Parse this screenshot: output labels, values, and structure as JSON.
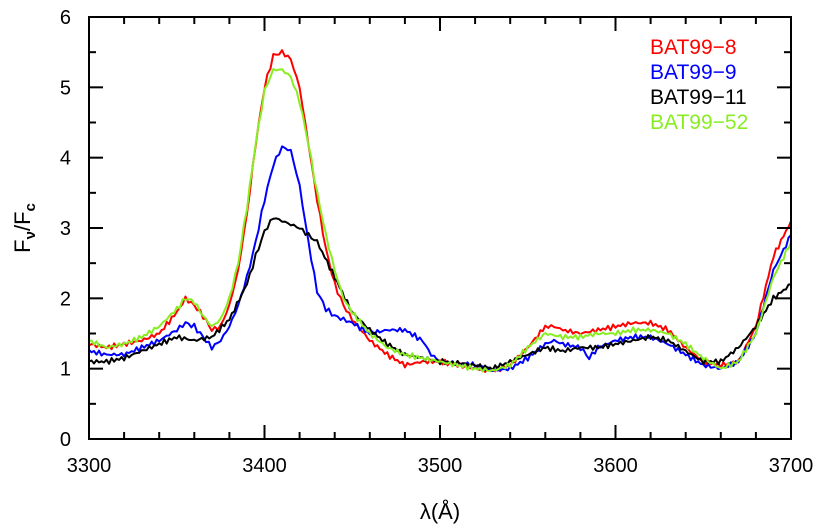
{
  "chart_data": {
    "type": "line",
    "title": "",
    "xlabel": "λ(Å)",
    "ylabel_main": "F",
    "ylabel_sub1": "ν",
    "ylabel_mid": "/F",
    "ylabel_sub2": "c",
    "xlim": [
      3300,
      3700
    ],
    "ylim": [
      0,
      6
    ],
    "x_ticks": [
      3300,
      3400,
      3500,
      3600,
      3700
    ],
    "x_tick_labels": [
      "3300",
      "3400",
      "3500",
      "3600",
      "3700"
    ],
    "y_ticks": [
      0,
      1,
      2,
      3,
      4,
      5,
      6
    ],
    "y_tick_labels": [
      "0",
      "1",
      "2",
      "3",
      "4",
      "5",
      "6"
    ],
    "grid": false,
    "legend_position": "top-right",
    "series": [
      {
        "name": "BAT99−8",
        "color": "#ff0000",
        "x": [
          3300,
          3310,
          3320,
          3330,
          3340,
          3350,
          3355,
          3360,
          3365,
          3370,
          3375,
          3380,
          3385,
          3390,
          3395,
          3400,
          3405,
          3410,
          3415,
          3420,
          3425,
          3430,
          3435,
          3440,
          3445,
          3450,
          3460,
          3470,
          3480,
          3490,
          3500,
          3510,
          3520,
          3530,
          3540,
          3550,
          3560,
          3565,
          3570,
          3580,
          3590,
          3600,
          3610,
          3620,
          3630,
          3640,
          3650,
          3660,
          3670,
          3680,
          3690,
          3700
        ],
        "y": [
          1.35,
          1.3,
          1.35,
          1.4,
          1.5,
          1.8,
          2.0,
          1.9,
          1.75,
          1.55,
          1.6,
          1.9,
          2.4,
          3.2,
          4.2,
          5.0,
          5.45,
          5.5,
          5.4,
          5.0,
          4.2,
          3.4,
          2.7,
          2.2,
          1.9,
          1.7,
          1.4,
          1.2,
          1.05,
          1.1,
          1.1,
          1.05,
          1.0,
          0.97,
          1.05,
          1.3,
          1.6,
          1.6,
          1.55,
          1.5,
          1.55,
          1.6,
          1.65,
          1.65,
          1.55,
          1.3,
          1.1,
          1.05,
          1.1,
          1.6,
          2.6,
          3.1
        ]
      },
      {
        "name": "BAT99−9",
        "color": "#0000ff",
        "x": [
          3300,
          3310,
          3320,
          3330,
          3340,
          3350,
          3355,
          3360,
          3365,
          3370,
          3375,
          3380,
          3385,
          3390,
          3395,
          3400,
          3405,
          3410,
          3415,
          3420,
          3425,
          3430,
          3435,
          3440,
          3445,
          3450,
          3460,
          3470,
          3480,
          3490,
          3495,
          3500,
          3510,
          3520,
          3530,
          3540,
          3550,
          3560,
          3565,
          3570,
          3580,
          3585,
          3590,
          3600,
          3610,
          3620,
          3630,
          3640,
          3650,
          3660,
          3670,
          3680,
          3690,
          3700
        ],
        "y": [
          1.25,
          1.2,
          1.2,
          1.3,
          1.4,
          1.55,
          1.65,
          1.6,
          1.45,
          1.3,
          1.4,
          1.6,
          1.9,
          2.3,
          2.8,
          3.4,
          3.9,
          4.15,
          4.1,
          3.6,
          2.8,
          2.1,
          1.85,
          1.75,
          1.7,
          1.65,
          1.5,
          1.55,
          1.55,
          1.4,
          1.2,
          1.1,
          1.08,
          1.05,
          0.97,
          1.0,
          1.15,
          1.35,
          1.4,
          1.35,
          1.3,
          1.15,
          1.3,
          1.4,
          1.45,
          1.45,
          1.35,
          1.2,
          1.05,
          1.0,
          1.1,
          1.5,
          2.4,
          2.9
        ]
      },
      {
        "name": "BAT99−11",
        "color": "#000000",
        "x": [
          3300,
          3310,
          3320,
          3330,
          3340,
          3350,
          3360,
          3370,
          3380,
          3390,
          3395,
          3400,
          3405,
          3410,
          3415,
          3420,
          3425,
          3430,
          3440,
          3450,
          3460,
          3470,
          3480,
          3490,
          3500,
          3510,
          3520,
          3530,
          3540,
          3550,
          3560,
          3570,
          3580,
          3590,
          3600,
          3610,
          3620,
          3630,
          3640,
          3650,
          3660,
          3670,
          3680,
          3690,
          3700
        ],
        "y": [
          1.1,
          1.1,
          1.15,
          1.25,
          1.35,
          1.45,
          1.4,
          1.45,
          1.7,
          2.2,
          2.6,
          2.95,
          3.15,
          3.1,
          3.05,
          3.0,
          2.9,
          2.8,
          2.3,
          1.8,
          1.55,
          1.35,
          1.2,
          1.15,
          1.1,
          1.08,
          1.05,
          1.0,
          1.1,
          1.2,
          1.3,
          1.25,
          1.3,
          1.3,
          1.35,
          1.4,
          1.45,
          1.4,
          1.25,
          1.1,
          1.1,
          1.3,
          1.6,
          2.0,
          2.2
        ]
      },
      {
        "name": "BAT99−52",
        "color": "#88ee22",
        "x": [
          3300,
          3310,
          3320,
          3330,
          3340,
          3350,
          3355,
          3360,
          3365,
          3370,
          3375,
          3380,
          3385,
          3390,
          3395,
          3400,
          3405,
          3410,
          3415,
          3420,
          3425,
          3430,
          3435,
          3440,
          3445,
          3450,
          3460,
          3470,
          3480,
          3490,
          3500,
          3510,
          3520,
          3530,
          3540,
          3550,
          3560,
          3570,
          3580,
          3590,
          3600,
          3610,
          3620,
          3630,
          3640,
          3650,
          3660,
          3670,
          3680,
          3690,
          3700
        ],
        "y": [
          1.4,
          1.3,
          1.35,
          1.45,
          1.6,
          1.85,
          2.0,
          1.95,
          1.75,
          1.6,
          1.7,
          2.0,
          2.5,
          3.3,
          4.2,
          4.95,
          5.25,
          5.25,
          5.15,
          4.8,
          4.2,
          3.5,
          2.9,
          2.4,
          2.0,
          1.8,
          1.5,
          1.3,
          1.2,
          1.15,
          1.1,
          1.05,
          1.0,
          0.97,
          1.05,
          1.3,
          1.5,
          1.45,
          1.45,
          1.5,
          1.5,
          1.55,
          1.55,
          1.5,
          1.35,
          1.15,
          1.0,
          1.1,
          1.5,
          2.3,
          2.8
        ]
      }
    ]
  }
}
